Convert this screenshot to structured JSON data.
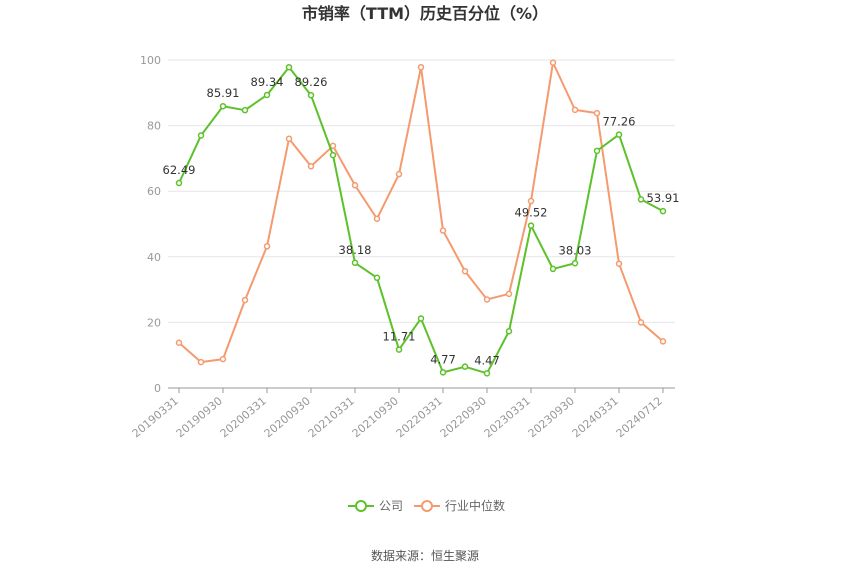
{
  "chart_data": {
    "type": "line",
    "title": "市销率（TTM）历史百分位（%）",
    "source": "数据来源：恒生聚源",
    "ylim": [
      0,
      100
    ],
    "yticks": [
      0,
      20,
      40,
      60,
      80,
      100
    ],
    "x_tick_labels": [
      "20190331",
      "20190930",
      "20200331",
      "20200930",
      "20210331",
      "20210930",
      "20220331",
      "20220930",
      "20230331",
      "20230930",
      "20240331",
      "20240712"
    ],
    "x_tick_positions": [
      0,
      2,
      4,
      6,
      8,
      10,
      12,
      14,
      16,
      18,
      20,
      22
    ],
    "legend_position": "bottom",
    "grid": true,
    "series": [
      {
        "name": "公司",
        "color": "#5cc12a",
        "values": [
          62.49,
          77.0,
          85.91,
          84.7,
          89.34,
          97.8,
          89.26,
          71.0,
          38.18,
          33.6,
          11.71,
          21.2,
          4.77,
          6.5,
          4.47,
          17.3,
          49.52,
          36.3,
          38.03,
          72.3,
          77.26,
          57.5,
          53.91
        ],
        "labels": {
          "0": "62.49",
          "2": "85.91",
          "4": "89.34",
          "6": "89.26",
          "8": "38.18",
          "10": "11.71",
          "12": "4.77",
          "14": "4.47",
          "16": "49.52",
          "18": "38.03",
          "20": "77.26",
          "22": "53.91"
        }
      },
      {
        "name": "行业中位数",
        "color": "#f59a6e",
        "values": [
          13.8,
          7.9,
          8.8,
          26.8,
          43.2,
          76.0,
          67.6,
          73.8,
          61.8,
          51.6,
          65.2,
          97.8,
          48.0,
          35.6,
          27.0,
          28.7,
          57.0,
          99.2,
          84.8,
          83.8,
          37.9,
          20.0,
          14.2
        ],
        "labels": {}
      }
    ]
  }
}
